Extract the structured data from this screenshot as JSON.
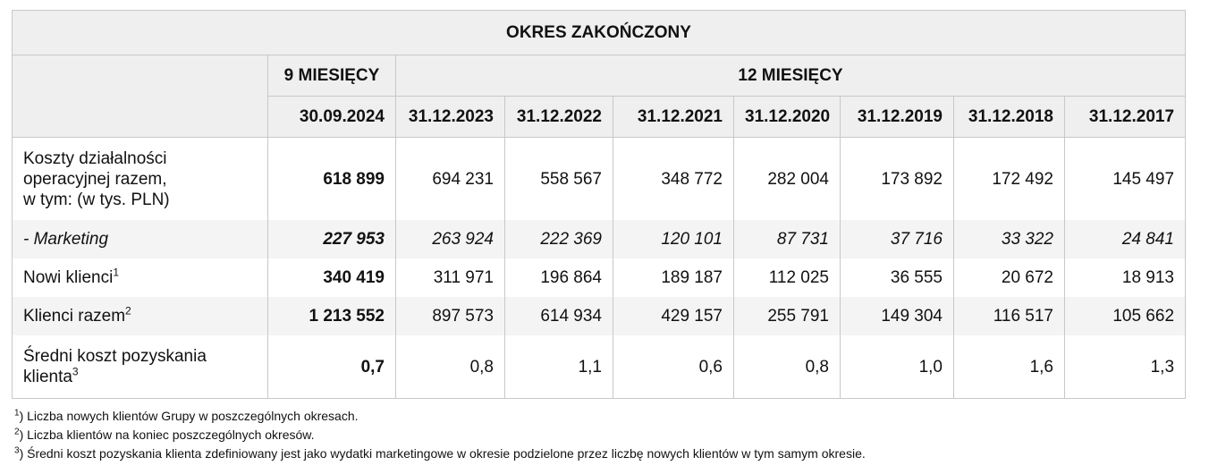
{
  "table": {
    "title": "OKRES ZAKOŃCZONY",
    "group_9m": "9 MIESIĘCY",
    "group_12m": "12 MIESIĘCY",
    "dates": [
      "30.09.2024",
      "31.12.2023",
      "31.12.2022",
      "31.12.2021",
      "31.12.2020",
      "31.12.2019",
      "31.12.2018",
      "31.12.2017"
    ],
    "rows": [
      {
        "label_lines": [
          "Koszty działalności",
          "operacyjnej razem,",
          "w tym: (w tys. PLN)"
        ],
        "values": [
          "618 899",
          "694 231",
          "558 567",
          "348 772",
          "282 004",
          "173 892",
          "172 492",
          "145 497"
        ]
      },
      {
        "label": "- Marketing",
        "values": [
          "227 953",
          "263 924",
          "222 369",
          "120 101",
          "87 731",
          "37 716",
          "33 322",
          "24 841"
        ]
      },
      {
        "label": "Nowi klienci",
        "sup": "1",
        "values": [
          "340 419",
          "311 971",
          "196 864",
          "189 187",
          "112 025",
          "36 555",
          "20 672",
          "18 913"
        ]
      },
      {
        "label": "Klienci razem",
        "sup": "2",
        "values": [
          "1 213 552",
          "897 573",
          "614 934",
          "429 157",
          "255 791",
          "149 304",
          "116 517",
          "105 662"
        ]
      },
      {
        "label_lines": [
          "Średni koszt pozyskania",
          "klienta"
        ],
        "sup": "3",
        "values": [
          "0,7",
          "0,8",
          "1,1",
          "0,6",
          "0,8",
          "1,0",
          "1,6",
          "1,3"
        ]
      }
    ]
  },
  "footnotes": [
    {
      "mark": "1",
      "text": ") Liczba nowych klientów Grupy w poszczególnych okresach."
    },
    {
      "mark": "2",
      "text": ") Liczba klientów na koniec poszczególnych okresów."
    },
    {
      "mark": "3",
      "text": ") Średni koszt pozyskania klienta zdefiniowany jest jako wydatki marketingowe w okresie podzielone przez liczbę nowych klientów w tym samym okresie."
    }
  ]
}
